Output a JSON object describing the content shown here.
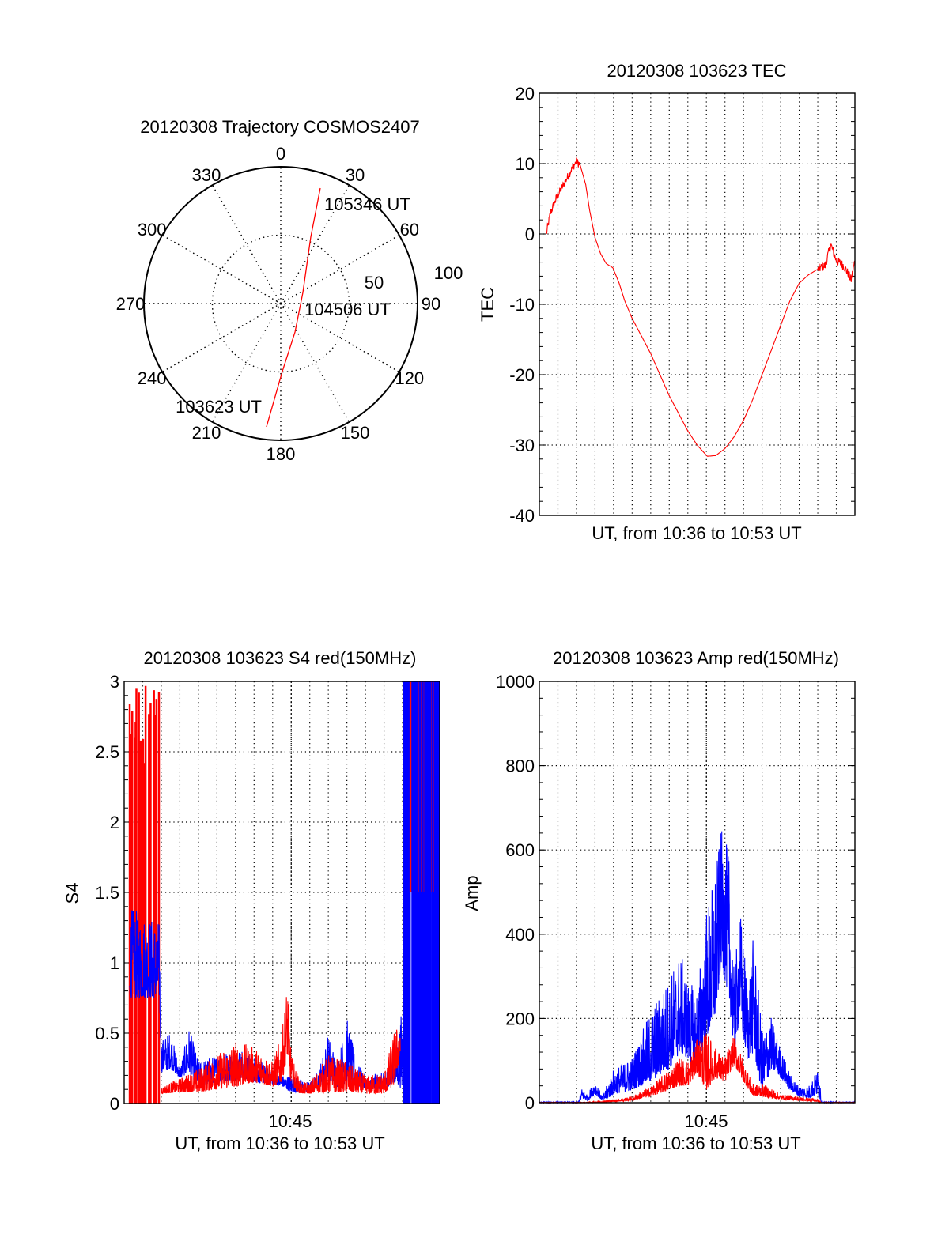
{
  "colors": {
    "red": "#ff0000",
    "blue": "#0000ff",
    "axis": "#000000"
  },
  "chart_data": [
    {
      "id": "polar",
      "type": "polar",
      "title": "20120308 Trajectory COSMOS2407",
      "azimuth_labels": [
        "0",
        "30",
        "60",
        "90",
        "120",
        "150",
        "180",
        "210",
        "240",
        "270",
        "300",
        "330"
      ],
      "radius_labels": [
        "50",
        "100"
      ],
      "rlim": [
        0,
        100
      ],
      "trajectory": {
        "azimuth_deg": [
          186.6,
          178.7,
          153.4,
          63.4,
          24.3,
          18.9
        ],
        "radius": [
          90.8,
          49.7,
          23.3,
          18.1,
          53.3,
          89.2
        ]
      },
      "annotations": [
        "103623 UT",
        "104506 UT",
        "105346 UT"
      ]
    },
    {
      "id": "tec",
      "type": "line",
      "title": "20120308 103623 TEC",
      "xlabel": "UT, from 10:36 to 10:53 UT",
      "ylabel": "TEC",
      "xlim": [
        0,
        17
      ],
      "ylim": [
        -40,
        20
      ],
      "yticks": [
        "-40",
        "-30",
        "-20",
        "-10",
        "0",
        "10",
        "20"
      ],
      "grid": true,
      "series": [
        {
          "name": "TEC",
          "color": "red",
          "t": [
            0.38,
            0.6,
            0.9,
            1.2,
            1.5,
            1.8,
            2.0,
            2.2,
            2.5,
            2.7,
            3.0,
            3.3,
            3.6,
            3.96,
            4.3,
            4.6,
            5.0,
            5.5,
            6.0,
            6.5,
            7.0,
            7.5,
            8.0,
            8.5,
            9.05,
            9.5,
            10.0,
            10.5,
            11.0,
            11.5,
            12.0,
            12.5,
            13.0,
            13.5,
            14.0,
            14.5,
            15.0,
            15.4,
            15.7,
            16.0,
            16.4,
            16.8,
            17.0
          ],
          "v": [
            0,
            3,
            5,
            6.5,
            8,
            9.5,
            10.3,
            9.8,
            7,
            3.5,
            -0.5,
            -2.8,
            -4.2,
            -4.8,
            -7,
            -9.5,
            -12,
            -14.5,
            -17,
            -20,
            -23,
            -25.5,
            -28,
            -30,
            -31.6,
            -31.5,
            -30.5,
            -28.8,
            -26.5,
            -23.5,
            -20,
            -16.5,
            -13,
            -9.5,
            -7,
            -5.8,
            -5,
            -4.5,
            -1.5,
            -3.8,
            -4.5,
            -6.5,
            -3.8
          ],
          "noisy_ranges": [
            [
              0.38,
              2.2,
              0.8
            ],
            [
              15.0,
              17.0,
              0.9
            ]
          ]
        }
      ]
    },
    {
      "id": "s4",
      "type": "line",
      "title": "20120308 103623 S4 red(150MHz)",
      "xlabel": "UT, from 10:36 to 10:53 UT",
      "ylabel": "S4",
      "xtick_label": "10:45",
      "xtick_value": 9,
      "xlim": [
        0,
        17
      ],
      "ylim": [
        0,
        3
      ],
      "yticks": [
        "0",
        "0.5",
        "1",
        "1.5",
        "2",
        "2.5",
        "3"
      ],
      "grid": true,
      "series": [
        {
          "name": "S4 red",
          "color": "red",
          "env_t": [
            2.0,
            3.0,
            4.0,
            5.0,
            6.0,
            7.0,
            8.0,
            8.5,
            8.8,
            9.0,
            9.5,
            10.0,
            11.0,
            12.0,
            13.0,
            14.0,
            14.5,
            14.9
          ],
          "env_lo": [
            0.07,
            0.08,
            0.08,
            0.1,
            0.12,
            0.15,
            0.12,
            0.15,
            0.35,
            0.12,
            0.07,
            0.07,
            0.08,
            0.08,
            0.07,
            0.07,
            0.12,
            0.35
          ],
          "env_hi": [
            0.12,
            0.18,
            0.25,
            0.35,
            0.45,
            0.4,
            0.3,
            0.5,
            0.88,
            0.35,
            0.15,
            0.15,
            0.35,
            0.3,
            0.2,
            0.22,
            0.5,
            0.6
          ],
          "saturated_range": [
            0.3,
            1.9
          ]
        },
        {
          "name": "S4 blue",
          "color": "blue",
          "env_t": [
            0.3,
            1.9,
            2.0,
            2.5,
            3.0,
            3.5,
            4.0,
            5.0,
            6.0,
            7.0,
            8.0,
            8.5,
            9.0,
            10.0,
            10.5,
            11.0,
            11.5,
            12.0,
            12.5,
            13.0,
            14.0,
            14.5,
            15.0
          ],
          "env_lo": [
            0.75,
            0.75,
            0.22,
            0.25,
            0.18,
            0.22,
            0.12,
            0.15,
            0.17,
            0.15,
            0.14,
            0.12,
            0.08,
            0.08,
            0.12,
            0.15,
            0.12,
            0.15,
            0.12,
            0.1,
            0.1,
            0.15,
            0.1
          ],
          "env_hi": [
            1.4,
            1.3,
            0.45,
            0.52,
            0.25,
            0.55,
            0.3,
            0.35,
            0.4,
            0.35,
            0.22,
            0.2,
            0.2,
            0.15,
            0.25,
            0.5,
            0.3,
            0.62,
            0.3,
            0.2,
            0.22,
            0.32,
            0.7
          ],
          "saturated_range": [
            15.1,
            17.0
          ]
        }
      ]
    },
    {
      "id": "amp",
      "type": "line",
      "title": "20120308 103623 Amp red(150MHz)",
      "xlabel": "UT, from 10:36 to 10:53 UT",
      "ylabel": "Amp",
      "xtick_label": "10:45",
      "xtick_value": 9,
      "xlim": [
        0,
        17
      ],
      "ylim": [
        0,
        1000
      ],
      "yticks": [
        "0",
        "200",
        "400",
        "600",
        "800",
        "1000"
      ],
      "grid": true,
      "series": [
        {
          "name": "Amp blue",
          "color": "blue",
          "env_t": [
            0.0,
            2.1,
            2.3,
            2.6,
            3.0,
            3.4,
            3.7,
            4.0,
            5.0,
            6.0,
            7.0,
            7.6,
            8.0,
            8.5,
            9.0,
            9.5,
            9.8,
            10.2,
            10.5,
            10.8,
            11.2,
            11.55,
            12.0,
            12.5,
            13.0,
            13.5,
            14.0,
            14.5,
            15.0,
            15.1,
            15.2,
            17.0
          ],
          "env_lo": [
            0,
            0,
            10,
            5,
            20,
            5,
            10,
            20,
            30,
            50,
            80,
            120,
            100,
            80,
            150,
            200,
            330,
            250,
            120,
            200,
            100,
            120,
            20,
            80,
            60,
            30,
            15,
            10,
            20,
            10,
            0,
            0
          ],
          "env_hi": [
            2,
            2,
            35,
            20,
            55,
            15,
            50,
            80,
            110,
            220,
            300,
            360,
            290,
            270,
            460,
            560,
            650,
            600,
            300,
            470,
            300,
            400,
            170,
            205,
            130,
            70,
            40,
            40,
            80,
            80,
            2,
            2
          ]
        },
        {
          "name": "Amp red",
          "color": "red",
          "env_t": [
            0.0,
            2.5,
            4.0,
            5.0,
            6.0,
            7.0,
            7.5,
            8.0,
            8.5,
            9.0,
            9.5,
            10.0,
            10.5,
            11.0,
            11.5,
            12.0,
            12.5,
            13.0,
            14.0,
            15.0,
            15.2,
            17.0
          ],
          "env_lo": [
            0,
            0,
            2,
            5,
            15,
            30,
            40,
            40,
            70,
            30,
            60,
            50,
            90,
            50,
            15,
            15,
            10,
            8,
            5,
            2,
            0,
            0
          ],
          "env_hi": [
            1,
            1,
            8,
            15,
            40,
            80,
            110,
            100,
            150,
            170,
            130,
            110,
            160,
            100,
            45,
            45,
            35,
            20,
            15,
            8,
            1,
            1
          ]
        }
      ]
    }
  ]
}
